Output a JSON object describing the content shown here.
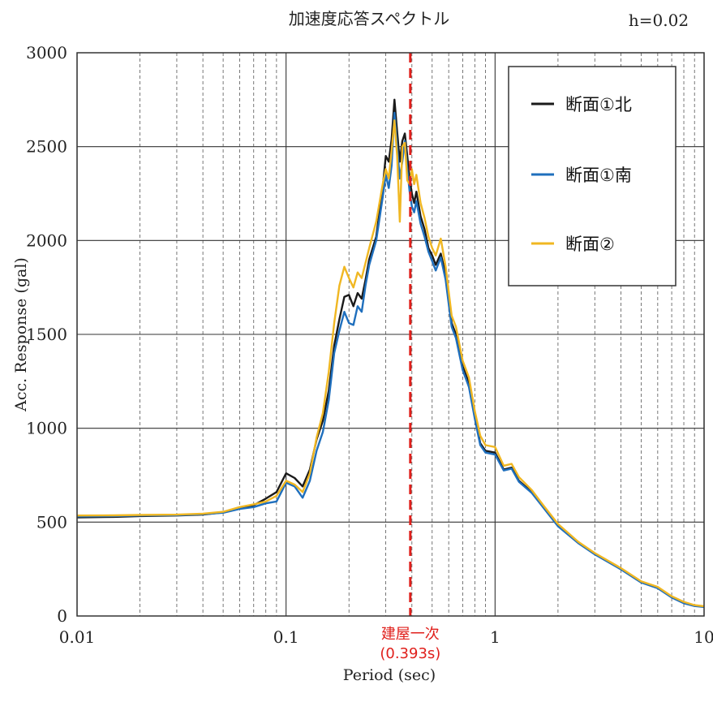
{
  "chart_data": {
    "type": "line",
    "title": "加速度応答スペクトル",
    "damping_label": "h=0.02",
    "xlabel": "Period (sec)",
    "ylabel": "Acc. Response (gal)",
    "xscale": "log",
    "xlim": [
      0.01,
      10
    ],
    "ylim": [
      0,
      3000
    ],
    "xticks": [
      0.01,
      0.1,
      1,
      10
    ],
    "xtick_labels": [
      "0.01",
      "0.1",
      "1",
      "10"
    ],
    "yticks": [
      0,
      500,
      1000,
      1500,
      2000,
      2500,
      3000
    ],
    "ytick_labels": [
      "0",
      "500",
      "1000",
      "1500",
      "2000",
      "2500",
      "3000"
    ],
    "grid": true,
    "legend_position": "top-right",
    "marker": {
      "x": 0.393,
      "label_line1": "建屋一次",
      "label_line2": "(0.393s)",
      "color": "#e0201c"
    },
    "series": [
      {
        "name": "断面①北",
        "color": "#1a1a1a",
        "points": [
          [
            0.01,
            525
          ],
          [
            0.015,
            528
          ],
          [
            0.02,
            532
          ],
          [
            0.03,
            535
          ],
          [
            0.04,
            540
          ],
          [
            0.05,
            552
          ],
          [
            0.06,
            575
          ],
          [
            0.07,
            590
          ],
          [
            0.08,
            625
          ],
          [
            0.09,
            660
          ],
          [
            0.1,
            760
          ],
          [
            0.11,
            735
          ],
          [
            0.12,
            690
          ],
          [
            0.13,
            780
          ],
          [
            0.14,
            940
          ],
          [
            0.15,
            1040
          ],
          [
            0.16,
            1200
          ],
          [
            0.17,
            1440
          ],
          [
            0.18,
            1580
          ],
          [
            0.19,
            1700
          ],
          [
            0.2,
            1710
          ],
          [
            0.21,
            1650
          ],
          [
            0.22,
            1720
          ],
          [
            0.23,
            1690
          ],
          [
            0.24,
            1790
          ],
          [
            0.25,
            1900
          ],
          [
            0.27,
            2020
          ],
          [
            0.29,
            2280
          ],
          [
            0.3,
            2450
          ],
          [
            0.31,
            2420
          ],
          [
            0.32,
            2540
          ],
          [
            0.33,
            2750
          ],
          [
            0.34,
            2580
          ],
          [
            0.35,
            2420
          ],
          [
            0.36,
            2530
          ],
          [
            0.37,
            2570
          ],
          [
            0.38,
            2450
          ],
          [
            0.39,
            2330
          ],
          [
            0.4,
            2250
          ],
          [
            0.41,
            2200
          ],
          [
            0.42,
            2260
          ],
          [
            0.44,
            2130
          ],
          [
            0.46,
            2060
          ],
          [
            0.48,
            1960
          ],
          [
            0.5,
            1920
          ],
          [
            0.52,
            1870
          ],
          [
            0.55,
            1930
          ],
          [
            0.58,
            1820
          ],
          [
            0.62,
            1560
          ],
          [
            0.65,
            1500
          ],
          [
            0.7,
            1330
          ],
          [
            0.75,
            1240
          ],
          [
            0.8,
            1060
          ],
          [
            0.85,
            920
          ],
          [
            0.9,
            880
          ],
          [
            1.0,
            870
          ],
          [
            1.1,
            780
          ],
          [
            1.2,
            790
          ],
          [
            1.3,
            720
          ],
          [
            1.5,
            660
          ],
          [
            1.7,
            580
          ],
          [
            2.0,
            480
          ],
          [
            2.5,
            390
          ],
          [
            3.0,
            330
          ],
          [
            4.0,
            250
          ],
          [
            5.0,
            180
          ],
          [
            6.0,
            150
          ],
          [
            7.0,
            100
          ],
          [
            8.0,
            70
          ],
          [
            9.0,
            55
          ],
          [
            10.0,
            50
          ]
        ]
      },
      {
        "name": "断面①南",
        "color": "#1f6fbd",
        "points": [
          [
            0.01,
            530
          ],
          [
            0.015,
            532
          ],
          [
            0.02,
            535
          ],
          [
            0.03,
            537
          ],
          [
            0.04,
            542
          ],
          [
            0.05,
            550
          ],
          [
            0.06,
            570
          ],
          [
            0.07,
            580
          ],
          [
            0.08,
            600
          ],
          [
            0.09,
            610
          ],
          [
            0.1,
            710
          ],
          [
            0.11,
            690
          ],
          [
            0.12,
            630
          ],
          [
            0.13,
            720
          ],
          [
            0.14,
            880
          ],
          [
            0.15,
            980
          ],
          [
            0.16,
            1150
          ],
          [
            0.17,
            1400
          ],
          [
            0.18,
            1520
          ],
          [
            0.19,
            1620
          ],
          [
            0.2,
            1560
          ],
          [
            0.21,
            1550
          ],
          [
            0.22,
            1650
          ],
          [
            0.23,
            1620
          ],
          [
            0.24,
            1760
          ],
          [
            0.25,
            1870
          ],
          [
            0.27,
            2000
          ],
          [
            0.29,
            2230
          ],
          [
            0.3,
            2350
          ],
          [
            0.31,
            2280
          ],
          [
            0.32,
            2400
          ],
          [
            0.33,
            2680
          ],
          [
            0.34,
            2500
          ],
          [
            0.35,
            2330
          ],
          [
            0.36,
            2420
          ],
          [
            0.37,
            2530
          ],
          [
            0.38,
            2380
          ],
          [
            0.39,
            2260
          ],
          [
            0.4,
            2180
          ],
          [
            0.41,
            2150
          ],
          [
            0.42,
            2210
          ],
          [
            0.44,
            2090
          ],
          [
            0.46,
            2020
          ],
          [
            0.48,
            1940
          ],
          [
            0.5,
            1890
          ],
          [
            0.52,
            1840
          ],
          [
            0.55,
            1910
          ],
          [
            0.58,
            1790
          ],
          [
            0.62,
            1540
          ],
          [
            0.65,
            1480
          ],
          [
            0.7,
            1310
          ],
          [
            0.75,
            1220
          ],
          [
            0.8,
            1050
          ],
          [
            0.85,
            910
          ],
          [
            0.9,
            870
          ],
          [
            1.0,
            860
          ],
          [
            1.1,
            775
          ],
          [
            1.2,
            785
          ],
          [
            1.3,
            715
          ],
          [
            1.5,
            655
          ],
          [
            1.7,
            578
          ],
          [
            2.0,
            478
          ],
          [
            2.5,
            388
          ],
          [
            3.0,
            328
          ],
          [
            4.0,
            248
          ],
          [
            5.0,
            178
          ],
          [
            6.0,
            148
          ],
          [
            7.0,
            98
          ],
          [
            8.0,
            68
          ],
          [
            9.0,
            53
          ],
          [
            10.0,
            48
          ]
        ]
      },
      {
        "name": "断面②",
        "color": "#f0b722",
        "points": [
          [
            0.01,
            535
          ],
          [
            0.015,
            536
          ],
          [
            0.02,
            538
          ],
          [
            0.03,
            540
          ],
          [
            0.04,
            545
          ],
          [
            0.05,
            555
          ],
          [
            0.06,
            580
          ],
          [
            0.07,
            595
          ],
          [
            0.08,
            610
          ],
          [
            0.09,
            640
          ],
          [
            0.1,
            720
          ],
          [
            0.11,
            700
          ],
          [
            0.12,
            660
          ],
          [
            0.13,
            760
          ],
          [
            0.14,
            950
          ],
          [
            0.15,
            1080
          ],
          [
            0.16,
            1300
          ],
          [
            0.17,
            1560
          ],
          [
            0.18,
            1760
          ],
          [
            0.19,
            1860
          ],
          [
            0.2,
            1800
          ],
          [
            0.21,
            1750
          ],
          [
            0.22,
            1830
          ],
          [
            0.23,
            1800
          ],
          [
            0.24,
            1880
          ],
          [
            0.25,
            1960
          ],
          [
            0.27,
            2100
          ],
          [
            0.29,
            2300
          ],
          [
            0.3,
            2380
          ],
          [
            0.31,
            2330
          ],
          [
            0.32,
            2480
          ],
          [
            0.33,
            2640
          ],
          [
            0.34,
            2450
          ],
          [
            0.35,
            2100
          ],
          [
            0.36,
            2500
          ],
          [
            0.37,
            2520
          ],
          [
            0.38,
            2320
          ],
          [
            0.39,
            2300
          ],
          [
            0.4,
            2380
          ],
          [
            0.41,
            2300
          ],
          [
            0.42,
            2350
          ],
          [
            0.44,
            2200
          ],
          [
            0.46,
            2120
          ],
          [
            0.48,
            2020
          ],
          [
            0.5,
            1960
          ],
          [
            0.52,
            1920
          ],
          [
            0.55,
            2010
          ],
          [
            0.58,
            1860
          ],
          [
            0.62,
            1600
          ],
          [
            0.65,
            1540
          ],
          [
            0.7,
            1360
          ],
          [
            0.75,
            1270
          ],
          [
            0.8,
            1090
          ],
          [
            0.85,
            960
          ],
          [
            0.9,
            910
          ],
          [
            1.0,
            900
          ],
          [
            1.1,
            800
          ],
          [
            1.2,
            810
          ],
          [
            1.3,
            740
          ],
          [
            1.5,
            670
          ],
          [
            1.7,
            590
          ],
          [
            2.0,
            490
          ],
          [
            2.5,
            395
          ],
          [
            3.0,
            335
          ],
          [
            4.0,
            255
          ],
          [
            5.0,
            185
          ],
          [
            6.0,
            155
          ],
          [
            7.0,
            105
          ],
          [
            8.0,
            75
          ],
          [
            9.0,
            58
          ],
          [
            10.0,
            52
          ]
        ]
      }
    ]
  }
}
